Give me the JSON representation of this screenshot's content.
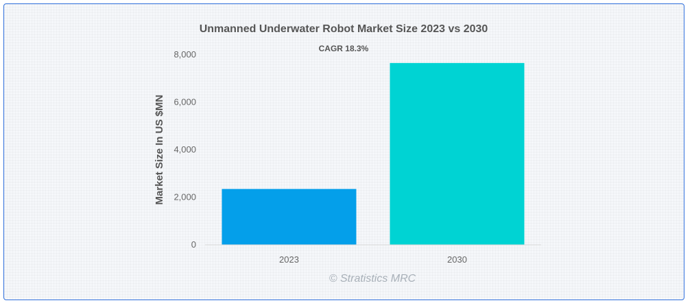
{
  "chart_data": {
    "type": "bar",
    "title": "Unmanned Underwater Robot Market Size 2023 vs 2030",
    "subtitle": "CAGR 18.3%",
    "categories": [
      "2023",
      "2030"
    ],
    "values": [
      2350,
      7650
    ],
    "ylabel": "Market Size In US $MN",
    "xlabel": "",
    "ylim": [
      0,
      8000
    ],
    "yticks": [
      0,
      2000,
      4000,
      6000,
      8000
    ],
    "ytick_labels": [
      "0",
      "2,000",
      "4,000",
      "6,000",
      "8,000"
    ],
    "colors": [
      "#049fea",
      "#00d3d3"
    ],
    "grid": false
  },
  "watermark": "© Stratistics MRC"
}
